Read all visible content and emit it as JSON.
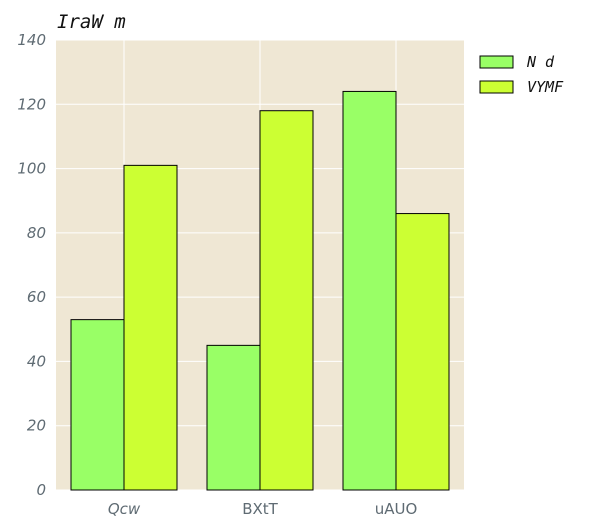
{
  "chart_data": {
    "type": "bar",
    "title": "IraW m",
    "xlabel": "",
    "ylabel": "",
    "categories": [
      "Qcw",
      "BXtT",
      "uAUO"
    ],
    "series": [
      {
        "name": "N d",
        "values": [
          53,
          45,
          124
        ],
        "color": "#99ff66"
      },
      {
        "name": "VYMF",
        "values": [
          101,
          118,
          86
        ],
        "color": "#ccff33"
      }
    ],
    "ylim": [
      0,
      140
    ],
    "yticks": [
      "0",
      "20",
      "40",
      "60",
      "80",
      "100",
      "120",
      "140"
    ],
    "grid": true,
    "legend": "top-right, outside plot",
    "colors": {
      "plot_background": "#efe7d4",
      "grid": "#ffffff",
      "tick_text": "#5f6b73"
    }
  }
}
